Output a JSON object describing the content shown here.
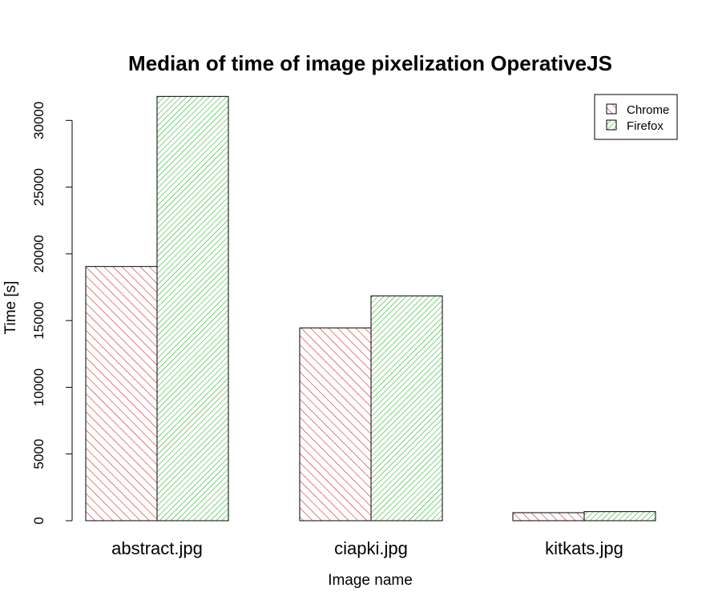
{
  "chart_data": {
    "type": "bar",
    "title": "Median of time of image pixelization OperativeJS",
    "xlabel": "Image name",
    "ylabel": "Time [s]",
    "categories": [
      "abstract.jpg",
      "ciapki.jpg",
      "kitkats.jpg"
    ],
    "series": [
      {
        "name": "Chrome",
        "values": [
          19050,
          14450,
          600
        ],
        "color": "#cc0000",
        "hatch_angle": 45,
        "hatch_density": "medium"
      },
      {
        "name": "Firefox",
        "values": [
          31800,
          16850,
          680
        ],
        "color": "#00aa00",
        "hatch_angle": 135,
        "hatch_density": "dense"
      }
    ],
    "ylim": [
      0,
      32000
    ],
    "yticks": [
      0,
      5000,
      10000,
      15000,
      20000,
      25000,
      30000
    ],
    "grid": false,
    "legend": "top-right"
  }
}
